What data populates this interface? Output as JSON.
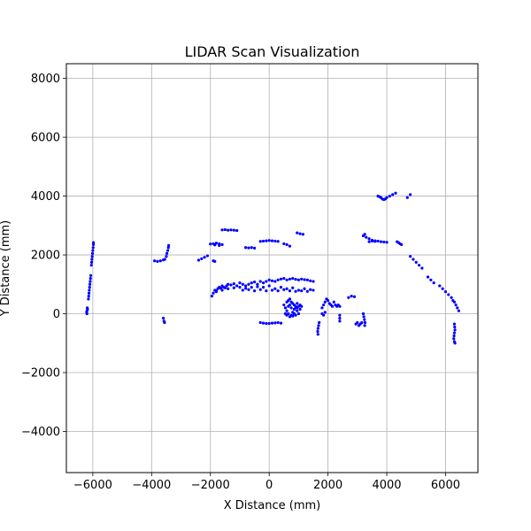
{
  "chart_data": {
    "type": "scatter",
    "title": "LIDAR Scan Visualization",
    "xlabel": "X Distance (mm)",
    "ylabel": "Y Distance (mm)",
    "xlim": [
      -6900,
      7100
    ],
    "ylim": [
      -5400,
      8500
    ],
    "xticks": [
      -6000,
      -4000,
      -2000,
      0,
      2000,
      4000,
      6000
    ],
    "xtick_labels": [
      "−6000",
      "−4000",
      "−2000",
      "0",
      "2000",
      "4000",
      "6000"
    ],
    "yticks": [
      -4000,
      -2000,
      0,
      2000,
      4000,
      6000,
      8000
    ],
    "ytick_labels": [
      "−4000",
      "−2000",
      "0",
      "2000",
      "4000",
      "6000",
      "8000"
    ],
    "grid": true,
    "point_color": "#0000ff",
    "points": [
      [
        -6200,
        100
      ],
      [
        -6200,
        0
      ],
      [
        -6190,
        200
      ],
      [
        -6180,
        150
      ],
      [
        -6210,
        50
      ],
      [
        -6150,
        500
      ],
      [
        -6140,
        600
      ],
      [
        -6130,
        700
      ],
      [
        -6120,
        800
      ],
      [
        -6110,
        900
      ],
      [
        -6100,
        1000
      ],
      [
        -6090,
        1100
      ],
      [
        -6080,
        1200
      ],
      [
        -6070,
        1300
      ],
      [
        -6050,
        1650
      ],
      [
        -6040,
        1750
      ],
      [
        -6030,
        1850
      ],
      [
        -6020,
        1950
      ],
      [
        -6010,
        2050
      ],
      [
        -6000,
        2150
      ],
      [
        -5990,
        2250
      ],
      [
        -5980,
        2350
      ],
      [
        -5980,
        2420
      ],
      [
        -3900,
        1800
      ],
      [
        -3800,
        1780
      ],
      [
        -3700,
        1800
      ],
      [
        -3600,
        1830
      ],
      [
        -3550,
        1850
      ],
      [
        -3500,
        1950
      ],
      [
        -3480,
        2050
      ],
      [
        -3450,
        2150
      ],
      [
        -3430,
        2250
      ],
      [
        -3420,
        2320
      ],
      [
        -3600,
        -150
      ],
      [
        -3580,
        -250
      ],
      [
        -3560,
        -300
      ],
      [
        -2400,
        1820
      ],
      [
        -2300,
        1870
      ],
      [
        -2200,
        1920
      ],
      [
        -2100,
        1970
      ],
      [
        -2000,
        2370
      ],
      [
        -1900,
        2380
      ],
      [
        -1800,
        2400
      ],
      [
        -1700,
        2380
      ],
      [
        -1600,
        2350
      ],
      [
        -1700,
        2320
      ],
      [
        -1850,
        2340
      ],
      [
        -1900,
        1800
      ],
      [
        -1850,
        1780
      ],
      [
        -1600,
        2850
      ],
      [
        -1500,
        2860
      ],
      [
        -1400,
        2840
      ],
      [
        -1300,
        2850
      ],
      [
        -1200,
        2840
      ],
      [
        -1100,
        2830
      ],
      [
        -800,
        2250
      ],
      [
        -700,
        2240
      ],
      [
        -600,
        2250
      ],
      [
        -500,
        2230
      ],
      [
        -300,
        2460
      ],
      [
        -200,
        2470
      ],
      [
        -100,
        2480
      ],
      [
        0,
        2490
      ],
      [
        100,
        2480
      ],
      [
        200,
        2470
      ],
      [
        300,
        2460
      ],
      [
        500,
        2380
      ],
      [
        600,
        2350
      ],
      [
        700,
        2300
      ],
      [
        950,
        2750
      ],
      [
        1050,
        2720
      ],
      [
        1150,
        2700
      ],
      [
        -1950,
        600
      ],
      [
        -1900,
        700
      ],
      [
        -1850,
        800
      ],
      [
        -1800,
        780
      ],
      [
        -1750,
        850
      ],
      [
        -1700,
        900
      ],
      [
        -1650,
        870
      ],
      [
        -1600,
        950
      ],
      [
        -1550,
        900
      ],
      [
        -1500,
        880
      ],
      [
        -1450,
        950
      ],
      [
        -1400,
        1000
      ],
      [
        -1300,
        980
      ],
      [
        -1200,
        1020
      ],
      [
        -1100,
        950
      ],
      [
        -1000,
        1050
      ],
      [
        -900,
        1000
      ],
      [
        -800,
        950
      ],
      [
        -700,
        1000
      ],
      [
        -600,
        1050
      ],
      [
        -500,
        1080
      ],
      [
        -400,
        1000
      ],
      [
        -300,
        1100
      ],
      [
        -200,
        1050
      ],
      [
        -100,
        1100
      ],
      [
        0,
        1150
      ],
      [
        100,
        1120
      ],
      [
        200,
        1100
      ],
      [
        300,
        1150
      ],
      [
        400,
        1180
      ],
      [
        500,
        1200
      ],
      [
        600,
        1150
      ],
      [
        700,
        1180
      ],
      [
        800,
        1200
      ],
      [
        900,
        1170
      ],
      [
        1000,
        1150
      ],
      [
        1100,
        1180
      ],
      [
        1200,
        1160
      ],
      [
        1300,
        1150
      ],
      [
        1400,
        1120
      ],
      [
        1500,
        1100
      ],
      [
        -1800,
        750
      ],
      [
        -1600,
        800
      ],
      [
        -1400,
        850
      ],
      [
        -1200,
        880
      ],
      [
        -1000,
        900
      ],
      [
        -800,
        860
      ],
      [
        -600,
        900
      ],
      [
        -400,
        920
      ],
      [
        -200,
        900
      ],
      [
        0,
        950
      ],
      [
        200,
        850
      ],
      [
        400,
        900
      ],
      [
        600,
        850
      ],
      [
        800,
        880
      ],
      [
        1000,
        800
      ],
      [
        1200,
        850
      ],
      [
        1400,
        820
      ],
      [
        -900,
        800
      ],
      [
        -700,
        820
      ],
      [
        -500,
        780
      ],
      [
        -300,
        820
      ],
      [
        -100,
        780
      ],
      [
        100,
        800
      ],
      [
        300,
        780
      ],
      [
        500,
        820
      ],
      [
        700,
        780
      ],
      [
        900,
        760
      ],
      [
        1100,
        780
      ],
      [
        1300,
        760
      ],
      [
        1500,
        800
      ],
      [
        500,
        300
      ],
      [
        550,
        200
      ],
      [
        600,
        100
      ],
      [
        650,
        0
      ],
      [
        700,
        -100
      ],
      [
        750,
        -50
      ],
      [
        800,
        50
      ],
      [
        850,
        150
      ],
      [
        900,
        250
      ],
      [
        950,
        350
      ],
      [
        600,
        400
      ],
      [
        650,
        450
      ],
      [
        700,
        500
      ],
      [
        750,
        400
      ],
      [
        800,
        350
      ],
      [
        850,
        300
      ],
      [
        900,
        200
      ],
      [
        950,
        100
      ],
      [
        1000,
        0
      ],
      [
        1050,
        150
      ],
      [
        550,
        0
      ],
      [
        600,
        -50
      ],
      [
        650,
        250
      ],
      [
        700,
        300
      ],
      [
        750,
        200
      ],
      [
        800,
        -80
      ],
      [
        850,
        0
      ],
      [
        900,
        -50
      ],
      [
        950,
        200
      ],
      [
        1000,
        250
      ],
      [
        1050,
        300
      ],
      [
        1100,
        250
      ],
      [
        -300,
        -300
      ],
      [
        -200,
        -320
      ],
      [
        -100,
        -330
      ],
      [
        0,
        -330
      ],
      [
        100,
        -320
      ],
      [
        200,
        -310
      ],
      [
        300,
        -300
      ],
      [
        400,
        -320
      ],
      [
        1700,
        -300
      ],
      [
        1680,
        -400
      ],
      [
        1660,
        -500
      ],
      [
        1650,
        -600
      ],
      [
        1660,
        -700
      ],
      [
        1800,
        200
      ],
      [
        1850,
        300
      ],
      [
        1900,
        400
      ],
      [
        1950,
        500
      ],
      [
        2000,
        450
      ],
      [
        2050,
        350
      ],
      [
        2100,
        300
      ],
      [
        2150,
        250
      ],
      [
        1800,
        0
      ],
      [
        1850,
        -50
      ],
      [
        1900,
        50
      ],
      [
        2200,
        400
      ],
      [
        2250,
        300
      ],
      [
        2300,
        250
      ],
      [
        2350,
        300
      ],
      [
        2400,
        250
      ],
      [
        2400,
        -50
      ],
      [
        2400,
        -150
      ],
      [
        2400,
        -250
      ],
      [
        2700,
        550
      ],
      [
        2800,
        600
      ],
      [
        2900,
        580
      ],
      [
        2950,
        -350
      ],
      [
        3000,
        -300
      ],
      [
        3050,
        -400
      ],
      [
        3100,
        -350
      ],
      [
        3150,
        -300
      ],
      [
        3200,
        0
      ],
      [
        3220,
        -100
      ],
      [
        3240,
        -200
      ],
      [
        3260,
        -300
      ],
      [
        3250,
        -400
      ],
      [
        3200,
        2650
      ],
      [
        3250,
        2700
      ],
      [
        3300,
        2600
      ],
      [
        3400,
        2550
      ],
      [
        3500,
        2500
      ],
      [
        3600,
        2480
      ],
      [
        3700,
        2470
      ],
      [
        3800,
        2450
      ],
      [
        3900,
        2440
      ],
      [
        4000,
        2430
      ],
      [
        3400,
        2450
      ],
      [
        3500,
        2470
      ],
      [
        3600,
        2460
      ],
      [
        4350,
        2450
      ],
      [
        4400,
        2420
      ],
      [
        4450,
        2380
      ],
      [
        4500,
        2350
      ],
      [
        3700,
        4000
      ],
      [
        3750,
        3980
      ],
      [
        3800,
        3950
      ],
      [
        3850,
        3900
      ],
      [
        3900,
        3880
      ],
      [
        3950,
        3900
      ],
      [
        4000,
        3950
      ],
      [
        4100,
        4000
      ],
      [
        4200,
        4050
      ],
      [
        4300,
        4100
      ],
      [
        4700,
        3950
      ],
      [
        4800,
        4050
      ],
      [
        4800,
        1950
      ],
      [
        4900,
        1850
      ],
      [
        5000,
        1750
      ],
      [
        5100,
        1650
      ],
      [
        5200,
        1550
      ],
      [
        5400,
        1250
      ],
      [
        5500,
        1150
      ],
      [
        5600,
        1050
      ],
      [
        5800,
        950
      ],
      [
        5900,
        850
      ],
      [
        6000,
        750
      ],
      [
        6100,
        650
      ],
      [
        6200,
        550
      ],
      [
        6250,
        450
      ],
      [
        6300,
        400
      ],
      [
        6350,
        300
      ],
      [
        6400,
        200
      ],
      [
        6450,
        100
      ],
      [
        6300,
        -350
      ],
      [
        6310,
        -450
      ],
      [
        6320,
        -550
      ],
      [
        6300,
        -650
      ],
      [
        6290,
        -750
      ],
      [
        6280,
        -850
      ],
      [
        6300,
        -950
      ],
      [
        6320,
        -1000
      ]
    ]
  }
}
